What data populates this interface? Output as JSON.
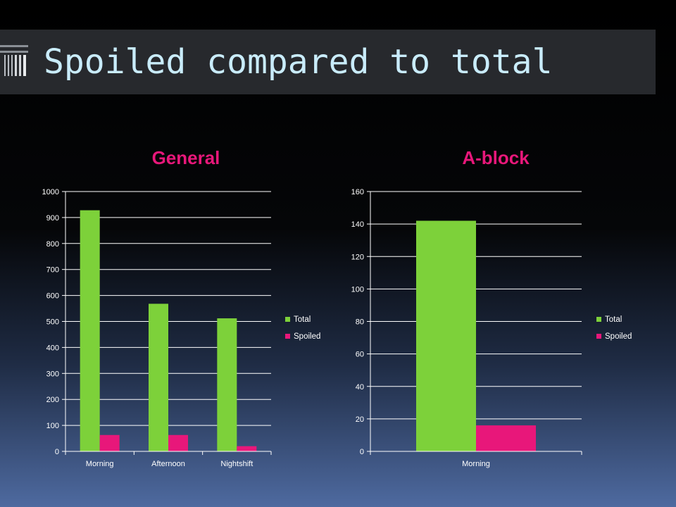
{
  "slide": {
    "title": "Spoiled compared to total"
  },
  "colors": {
    "total": "#7dd13a",
    "spoiled": "#e8177a",
    "chart_title": "#e8177a",
    "grid": "#ffffff",
    "axis_text": "#ffffff"
  },
  "chart_data": [
    {
      "type": "bar",
      "title": "General",
      "categories": [
        "Morning",
        "Afternoon",
        "Nightshift"
      ],
      "series": [
        {
          "name": "Total",
          "values": [
            928,
            568,
            512
          ]
        },
        {
          "name": "Spoiled",
          "values": [
            63,
            63,
            20
          ]
        }
      ],
      "yticks": [
        "0",
        "100",
        "200",
        "300",
        "400",
        "500",
        "600",
        "700",
        "800",
        "900",
        "1000"
      ],
      "ylim": [
        0,
        1000
      ],
      "grid": true,
      "legend": "right"
    },
    {
      "type": "bar",
      "title": "A-block",
      "categories": [
        "Morning"
      ],
      "series": [
        {
          "name": "Total",
          "values": [
            142
          ]
        },
        {
          "name": "Spoiled",
          "values": [
            16
          ]
        }
      ],
      "yticks": [
        "0",
        "20",
        "40",
        "60",
        "80",
        "100",
        "120",
        "140",
        "160"
      ],
      "ylim": [
        0,
        160
      ],
      "grid": true,
      "legend": "right"
    }
  ]
}
